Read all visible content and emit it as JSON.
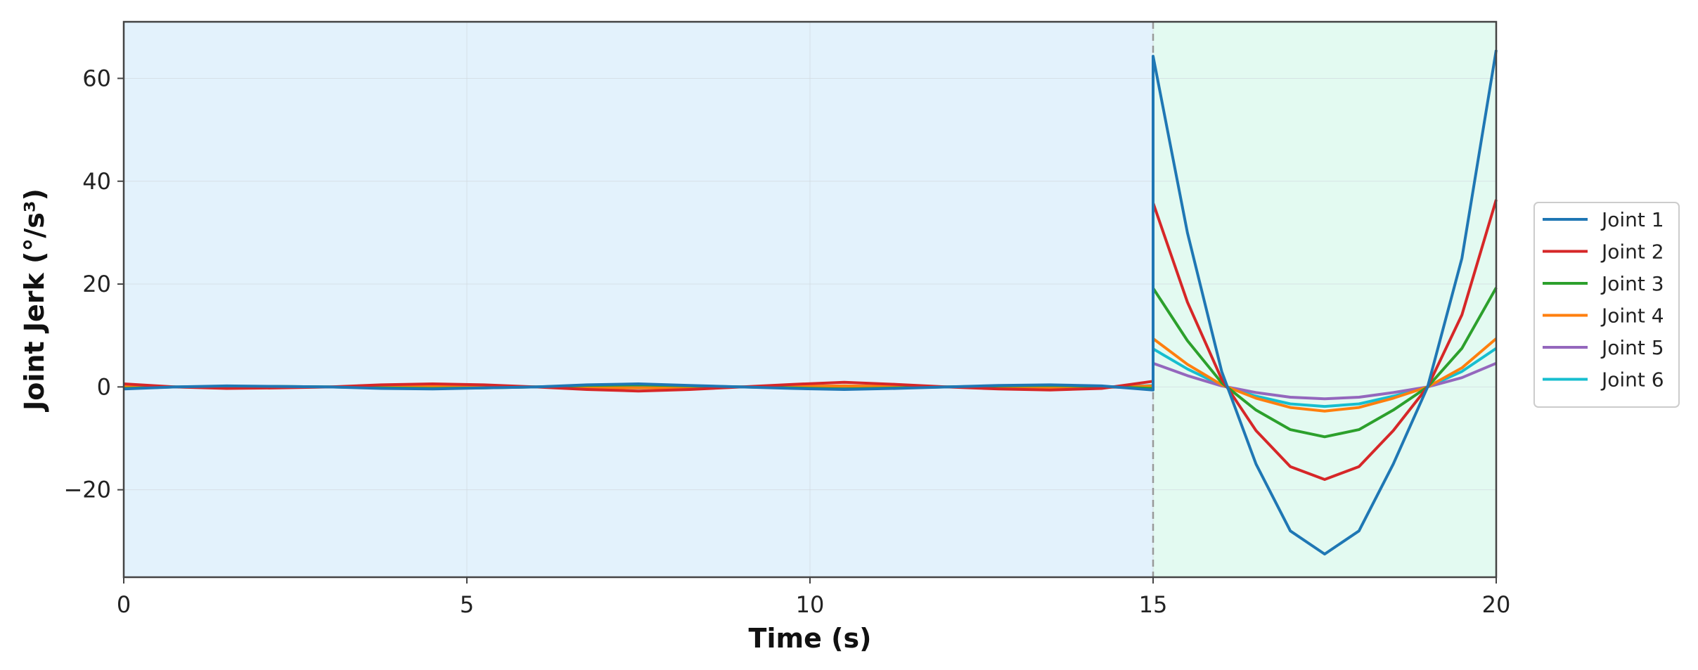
{
  "chart_data": {
    "type": "line",
    "title": "",
    "xlabel": "Time (s)",
    "ylabel": "Joint Jerk (°/s³)",
    "xlim": [
      0,
      20
    ],
    "ylim": [
      -37,
      71
    ],
    "x_ticks": [
      0,
      5,
      10,
      15,
      20
    ],
    "y_ticks": [
      -20,
      0,
      20,
      40,
      60
    ],
    "x_tick_labels": [
      "0",
      "5",
      "10",
      "15",
      "20"
    ],
    "y_tick_labels": [
      "−20",
      "0",
      "20",
      "40",
      "60"
    ],
    "grid": true,
    "legend_position": "right, outside",
    "phase_boundary_x": 15,
    "regions": [
      {
        "x_from": 0,
        "x_to": 15,
        "color": "#e3f2fc"
      },
      {
        "x_from": 15,
        "x_to": 20,
        "color": "#e3faf1"
      }
    ],
    "series": [
      {
        "name": "Joint 1",
        "color": "#1f77b4",
        "x": [
          0,
          0.75,
          1.5,
          2.25,
          3,
          3.75,
          4.5,
          5.25,
          6,
          6.75,
          7.5,
          8.25,
          9,
          9.75,
          10.5,
          11.25,
          12,
          12.75,
          13.5,
          14.25,
          15,
          15,
          15.5,
          16,
          16.5,
          17,
          17.5,
          18,
          18.5,
          19,
          19.5,
          20
        ],
        "y": [
          -0.4,
          0,
          0.2,
          0.1,
          0,
          -0.3,
          -0.4,
          -0.2,
          0,
          0.4,
          0.6,
          0.3,
          0,
          -0.3,
          -0.5,
          -0.3,
          0,
          0.3,
          0.4,
          0.2,
          -0.6,
          64.3,
          30,
          3,
          -15,
          -28,
          -32.5,
          -28,
          -15,
          0,
          25,
          65.5
        ]
      },
      {
        "name": "Joint 2",
        "color": "#d62728",
        "x": [
          0,
          0.75,
          1.5,
          2.25,
          3,
          3.75,
          4.5,
          5.25,
          6,
          6.75,
          7.5,
          8.25,
          9,
          9.75,
          10.5,
          11.25,
          12,
          12.75,
          13.5,
          14.25,
          15,
          15,
          15.5,
          16,
          16.5,
          17,
          17.5,
          18,
          18.5,
          19,
          19.5,
          20
        ],
        "y": [
          0.6,
          0,
          -0.3,
          -0.2,
          0,
          0.4,
          0.6,
          0.4,
          0,
          -0.5,
          -0.8,
          -0.5,
          0,
          0.5,
          0.9,
          0.5,
          0,
          -0.4,
          -0.6,
          -0.3,
          1.1,
          35.8,
          16.5,
          1.5,
          -8.5,
          -15.5,
          -18,
          -15.5,
          -8.5,
          0,
          14,
          36.4
        ]
      },
      {
        "name": "Joint 3",
        "color": "#2ca02c",
        "x": [
          0,
          0.75,
          1.5,
          2.25,
          3,
          3.75,
          4.5,
          5.25,
          6,
          6.75,
          7.5,
          8.25,
          9,
          9.75,
          10.5,
          11.25,
          12,
          12.75,
          13.5,
          14.25,
          15,
          15,
          15.5,
          16,
          16.5,
          17,
          17.5,
          18,
          18.5,
          19,
          19.5,
          20
        ],
        "y": [
          -0.3,
          0,
          0.1,
          0.1,
          0,
          -0.2,
          -0.3,
          -0.2,
          0,
          0.3,
          0.4,
          0.2,
          0,
          -0.2,
          -0.4,
          -0.2,
          0,
          0.2,
          0.3,
          0.1,
          -0.3,
          19.2,
          9,
          0.8,
          -4.5,
          -8.3,
          -9.7,
          -8.3,
          -4.5,
          0,
          7.5,
          19.3
        ]
      },
      {
        "name": "Joint 4",
        "color": "#ff7f0e",
        "x": [
          0,
          0.75,
          1.5,
          2.25,
          3,
          3.75,
          4.5,
          5.25,
          6,
          6.75,
          7.5,
          8.25,
          9,
          9.75,
          10.5,
          11.25,
          12,
          12.75,
          13.5,
          14.25,
          15,
          15,
          15.5,
          16,
          16.5,
          17,
          17.5,
          18,
          18.5,
          19,
          19.5,
          20
        ],
        "y": [
          0.2,
          0,
          -0.1,
          -0.1,
          0,
          0.1,
          0.2,
          0.1,
          0,
          -0.1,
          -0.2,
          -0.1,
          0,
          0.1,
          0.2,
          0.1,
          0,
          -0.1,
          -0.2,
          -0.1,
          0.2,
          9.4,
          4.4,
          0.4,
          -2.2,
          -4,
          -4.7,
          -4,
          -2.2,
          0,
          3.7,
          9.4
        ]
      },
      {
        "name": "Joint 5",
        "color": "#9467bd",
        "x": [
          0,
          0.75,
          1.5,
          2.25,
          3,
          3.75,
          4.5,
          5.25,
          6,
          6.75,
          7.5,
          8.25,
          9,
          9.75,
          10.5,
          11.25,
          12,
          12.75,
          13.5,
          14.25,
          15,
          15,
          15.5,
          16,
          16.5,
          17,
          17.5,
          18,
          18.5,
          19,
          19.5,
          20
        ],
        "y": [
          -0.1,
          0,
          0.1,
          0,
          0,
          -0.1,
          -0.1,
          -0.1,
          0,
          0.1,
          0.1,
          0.1,
          0,
          -0.1,
          -0.1,
          -0.1,
          0,
          0.1,
          0.1,
          0,
          -0.2,
          4.6,
          2.2,
          0.2,
          -1.1,
          -2,
          -2.3,
          -2,
          -1.1,
          0,
          1.8,
          4.6
        ]
      },
      {
        "name": "Joint 6",
        "color": "#17becf",
        "x": [
          0,
          0.75,
          1.5,
          2.25,
          3,
          3.75,
          4.5,
          5.25,
          6,
          6.75,
          7.5,
          8.25,
          9,
          9.75,
          10.5,
          11.25,
          12,
          12.75,
          13.5,
          14.25,
          15,
          15,
          15.5,
          16,
          16.5,
          17,
          17.5,
          18,
          18.5,
          19,
          19.5,
          20
        ],
        "y": [
          0.1,
          0,
          -0.1,
          0,
          0,
          0.1,
          0.2,
          0.1,
          0,
          -0.1,
          -0.2,
          -0.1,
          0,
          0.1,
          0.2,
          0.1,
          0,
          -0.1,
          -0.1,
          -0.1,
          0.3,
          7.4,
          3.5,
          0.3,
          -1.8,
          -3.3,
          -3.8,
          -3.3,
          -1.8,
          0,
          3,
          7.5
        ]
      }
    ]
  }
}
